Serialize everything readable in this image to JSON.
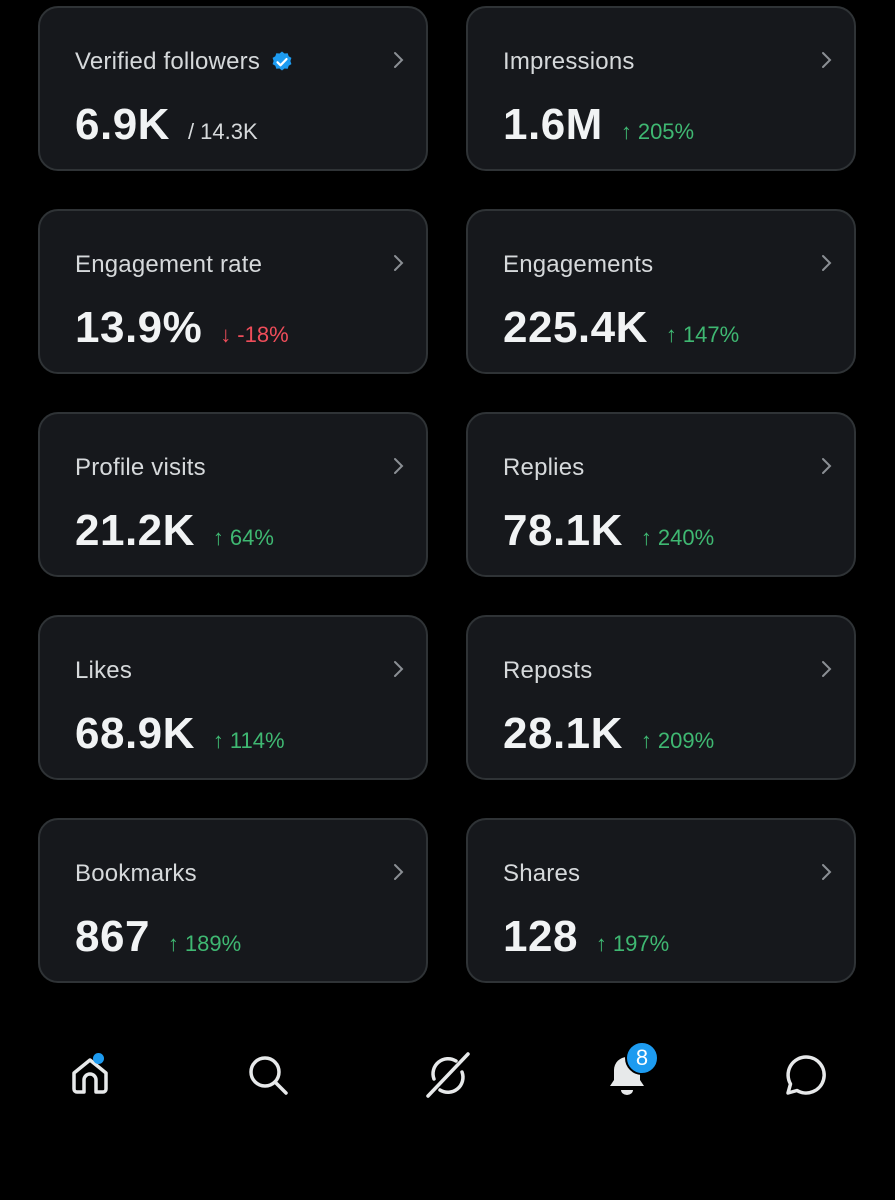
{
  "cards": [
    {
      "title": "Verified followers",
      "value": "6.9K",
      "sub": "/ 14.3K",
      "verified": true
    },
    {
      "title": "Impressions",
      "value": "1.6M",
      "change": "205%",
      "direction": "up"
    },
    {
      "title": "Engagement rate",
      "value": "13.9%",
      "change": "-18%",
      "direction": "down"
    },
    {
      "title": "Engagements",
      "value": "225.4K",
      "change": "147%",
      "direction": "up"
    },
    {
      "title": "Profile visits",
      "value": "21.2K",
      "change": "64%",
      "direction": "up"
    },
    {
      "title": "Replies",
      "value": "78.1K",
      "change": "240%",
      "direction": "up"
    },
    {
      "title": "Likes",
      "value": "68.9K",
      "change": "114%",
      "direction": "up"
    },
    {
      "title": "Reposts",
      "value": "28.1K",
      "change": "209%",
      "direction": "up"
    },
    {
      "title": "Bookmarks",
      "value": "867",
      "change": "189%",
      "direction": "up"
    },
    {
      "title": "Shares",
      "value": "128",
      "change": "197%",
      "direction": "up"
    }
  ],
  "arrows": {
    "up": "↑",
    "down": "↓"
  },
  "nav": {
    "items": [
      {
        "icon": "home-icon",
        "active_dot": true
      },
      {
        "icon": "search-icon"
      },
      {
        "icon": "grok-icon"
      },
      {
        "icon": "bell-icon",
        "badge": "8"
      },
      {
        "icon": "messages-icon"
      }
    ]
  },
  "colors": {
    "up": "#3fb872",
    "down": "#ef4d5a",
    "accent": "#1d9bf0",
    "card_bg": "#16181c"
  }
}
